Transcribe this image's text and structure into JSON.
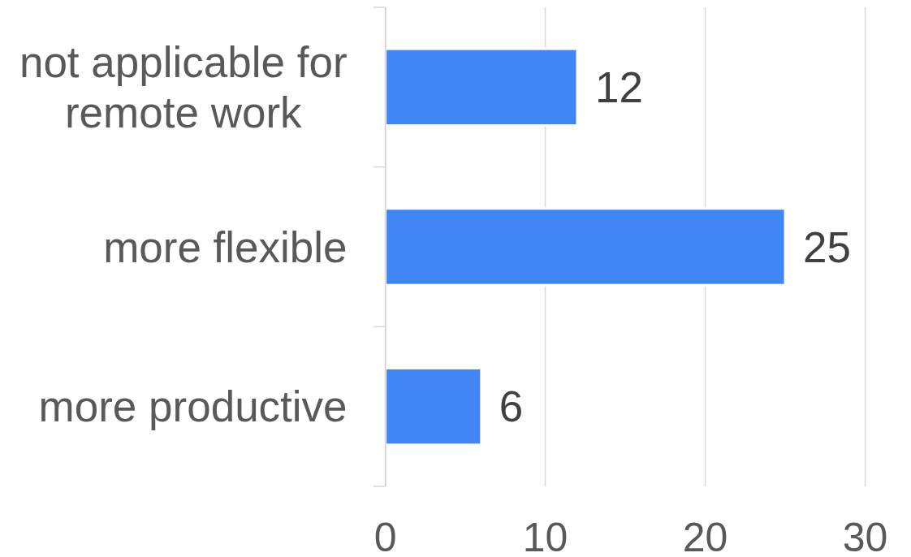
{
  "chart_data": {
    "type": "bar",
    "orientation": "horizontal",
    "categories": [
      "not applicable for remote work",
      "more flexible",
      "more productive"
    ],
    "values": [
      12,
      25,
      6
    ],
    "color": "#4285f4",
    "xlim": [
      0,
      30
    ],
    "xticks": [
      0,
      10,
      20,
      30
    ],
    "grid": "x",
    "data_labels": true
  }
}
